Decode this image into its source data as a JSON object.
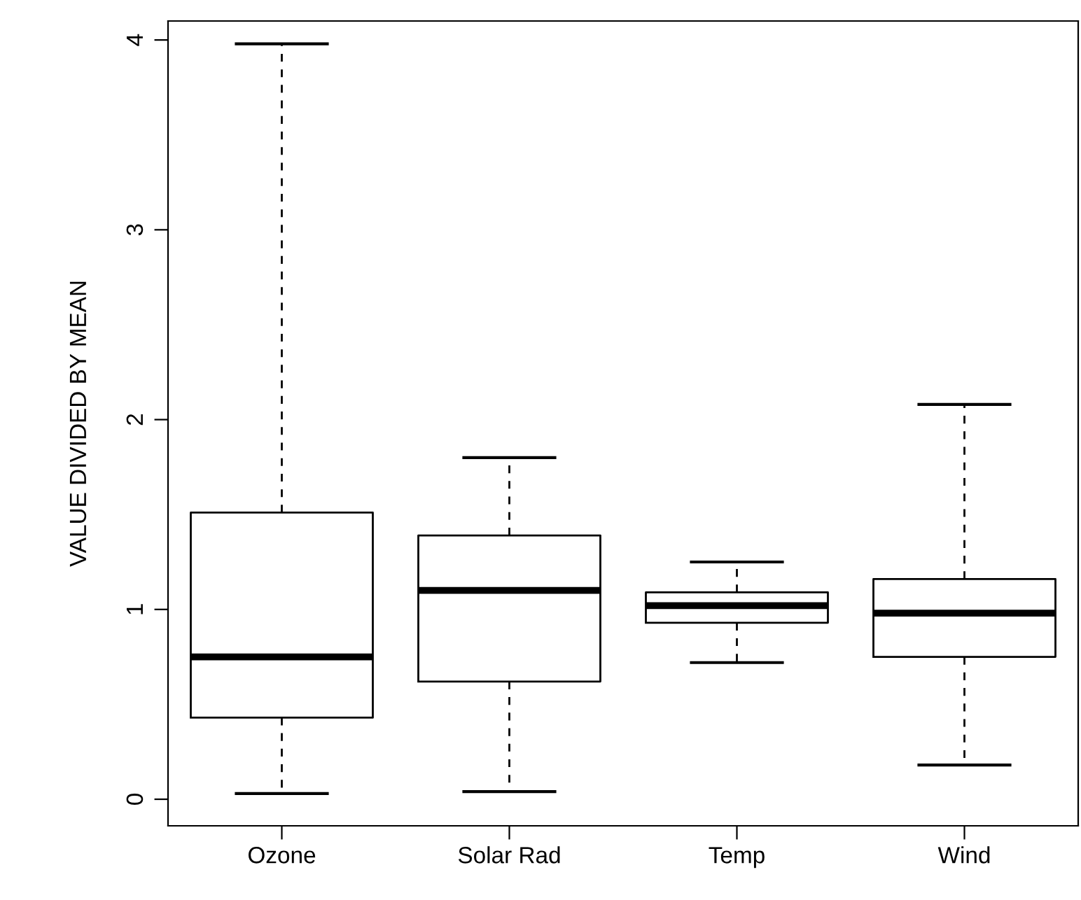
{
  "chart_data": {
    "type": "box",
    "ylabel": "VALUE DIVIDED BY MEAN",
    "categories": [
      "Ozone",
      "Solar Rad",
      "Temp",
      "Wind"
    ],
    "boxes": [
      {
        "low": 0.03,
        "q1": 0.43,
        "median": 0.75,
        "q3": 1.51,
        "high": 3.98
      },
      {
        "low": 0.04,
        "q1": 0.62,
        "median": 1.1,
        "q3": 1.39,
        "high": 1.8
      },
      {
        "low": 0.72,
        "q1": 0.93,
        "median": 1.02,
        "q3": 1.09,
        "high": 1.25
      },
      {
        "low": 0.18,
        "q1": 0.75,
        "median": 0.98,
        "q3": 1.16,
        "high": 2.08
      }
    ],
    "ylim": [
      -0.14,
      4.1
    ],
    "yticks": [
      0,
      1,
      2,
      3,
      4
    ],
    "grid": false,
    "legend": false
  }
}
